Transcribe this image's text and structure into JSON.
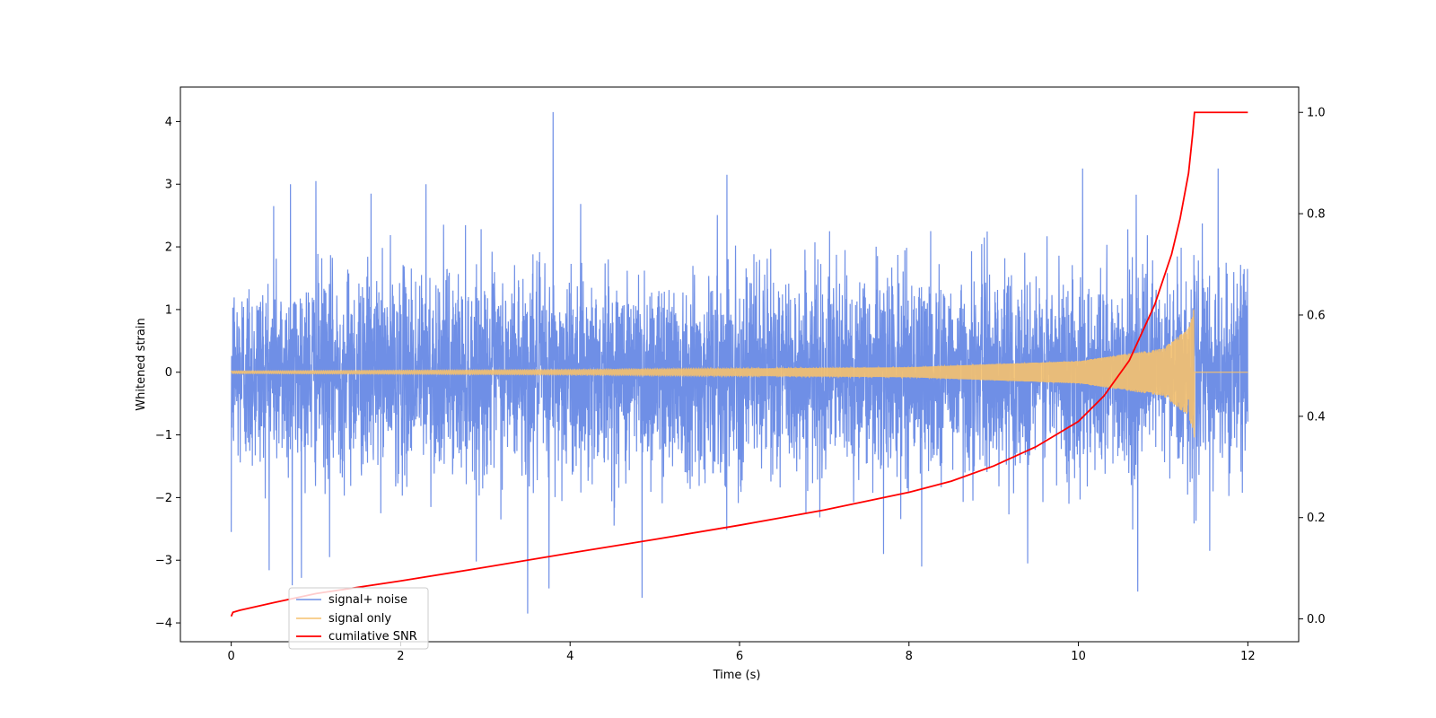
{
  "chart_data": {
    "type": "line",
    "title": "",
    "xlabel": "Time (s)",
    "ylabel": "Whitened strain",
    "y2label": "",
    "xlim": [
      -0.6,
      12.6
    ],
    "ylim": [
      -4.3,
      4.55
    ],
    "y2lim": [
      -0.045,
      1.05
    ],
    "x_ticks": [
      0,
      2,
      4,
      6,
      8,
      10,
      12
    ],
    "y_ticks": [
      -4,
      -3,
      -2,
      -1,
      0,
      1,
      2,
      3,
      4
    ],
    "y2_ticks": [
      0.0,
      0.2,
      0.4,
      0.6,
      0.8,
      1.0
    ],
    "x_tick_labels": [
      "0",
      "2",
      "4",
      "6",
      "8",
      "10",
      "12"
    ],
    "y_tick_labels": [
      "−4",
      "−3",
      "−2",
      "−1",
      "0",
      "1",
      "2",
      "3",
      "4"
    ],
    "y2_tick_labels": [
      "0.0",
      "0.2",
      "0.4",
      "0.6",
      "0.8",
      "1.0"
    ],
    "grid": false,
    "legend_position": "lower-left",
    "series": [
      {
        "name": "signal+ noise",
        "color": "#6f8fe6",
        "axis": "left",
        "description_points": {
          "x_range": [
            0,
            12
          ],
          "typical_envelope": [
            -1.8,
            1.8
          ],
          "peaks": [
            {
              "x": 0.0,
              "y": 1.35
            },
            {
              "x": 0.0,
              "y": -2.55
            },
            {
              "x": 0.5,
              "y": 2.65
            },
            {
              "x": 0.7,
              "y": 3.0
            },
            {
              "x": 0.72,
              "y": -3.4
            },
            {
              "x": 1.0,
              "y": 3.05
            },
            {
              "x": 1.16,
              "y": -2.95
            },
            {
              "x": 1.65,
              "y": 2.85
            },
            {
              "x": 2.3,
              "y": 3.0
            },
            {
              "x": 3.5,
              "y": -3.85
            },
            {
              "x": 3.8,
              "y": 4.15
            },
            {
              "x": 3.75,
              "y": -3.45
            },
            {
              "x": 4.85,
              "y": -3.6
            },
            {
              "x": 5.85,
              "y": 3.15
            },
            {
              "x": 7.7,
              "y": -2.9
            },
            {
              "x": 8.15,
              "y": -3.1
            },
            {
              "x": 9.4,
              "y": -3.05
            },
            {
              "x": 10.05,
              "y": 3.25
            },
            {
              "x": 10.7,
              "y": -3.5
            },
            {
              "x": 11.55,
              "y": -2.85
            },
            {
              "x": 11.65,
              "y": 3.25
            }
          ]
        }
      },
      {
        "name": "signal only",
        "color": "#f5c16e",
        "axis": "left",
        "description_points": {
          "x_range": [
            0,
            12
          ],
          "merger_time": 11.37,
          "amplitude_at": [
            {
              "x": 0,
              "a": 0.02
            },
            {
              "x": 4,
              "a": 0.04
            },
            {
              "x": 8,
              "a": 0.08
            },
            {
              "x": 10,
              "a": 0.18
            },
            {
              "x": 11,
              "a": 0.38
            },
            {
              "x": 11.3,
              "a": 0.7
            },
            {
              "x": 11.37,
              "a": 1.05
            }
          ]
        }
      },
      {
        "name": "cumilative SNR",
        "color": "#ff0000",
        "axis": "right",
        "x": [
          0,
          0.02,
          0.1,
          0.5,
          1,
          2,
          3,
          4,
          5,
          6,
          7,
          8,
          8.5,
          9,
          9.5,
          10,
          10.3,
          10.6,
          10.9,
          11.1,
          11.2,
          11.3,
          11.35,
          11.37,
          11.4,
          12
        ],
        "values": [
          0.005,
          0.013,
          0.017,
          0.032,
          0.05,
          0.075,
          0.102,
          0.13,
          0.157,
          0.185,
          0.215,
          0.25,
          0.272,
          0.302,
          0.34,
          0.39,
          0.44,
          0.51,
          0.62,
          0.72,
          0.79,
          0.88,
          0.96,
          1.0,
          1.0,
          1.0
        ]
      }
    ]
  }
}
